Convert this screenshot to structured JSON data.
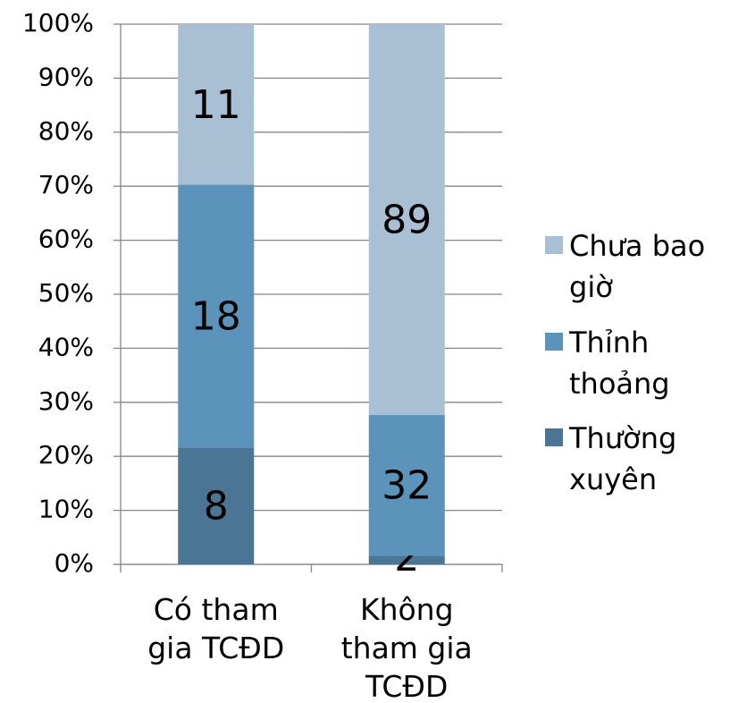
{
  "chart_data": {
    "type": "bar",
    "stacking": "percent",
    "categories": [
      "Có tham gia TCĐD",
      "Không tham gia TCĐD"
    ],
    "series": [
      {
        "name": "Thường xuyên",
        "color": "#4a7595",
        "values": [
          8,
          2
        ]
      },
      {
        "name": "Thỉnh thoảng",
        "color": "#5b93bb",
        "values": [
          18,
          32
        ]
      },
      {
        "name": "Chưa bao giờ",
        "color": "#a9bfd3",
        "values": [
          11,
          89
        ]
      }
    ],
    "ylim": [
      0,
      100
    ],
    "yticks": [
      {
        "value": 0,
        "label": "0%"
      },
      {
        "value": 10,
        "label": "10%"
      },
      {
        "value": 20,
        "label": "20%"
      },
      {
        "value": 30,
        "label": "30%"
      },
      {
        "value": 40,
        "label": "40%"
      },
      {
        "value": 50,
        "label": "50%"
      },
      {
        "value": 60,
        "label": "60%"
      },
      {
        "value": 70,
        "label": "70%"
      },
      {
        "value": 80,
        "label": "80%"
      },
      {
        "value": 90,
        "label": "90%"
      },
      {
        "value": 100,
        "label": "100%"
      }
    ],
    "grid": true,
    "legend": "right"
  }
}
